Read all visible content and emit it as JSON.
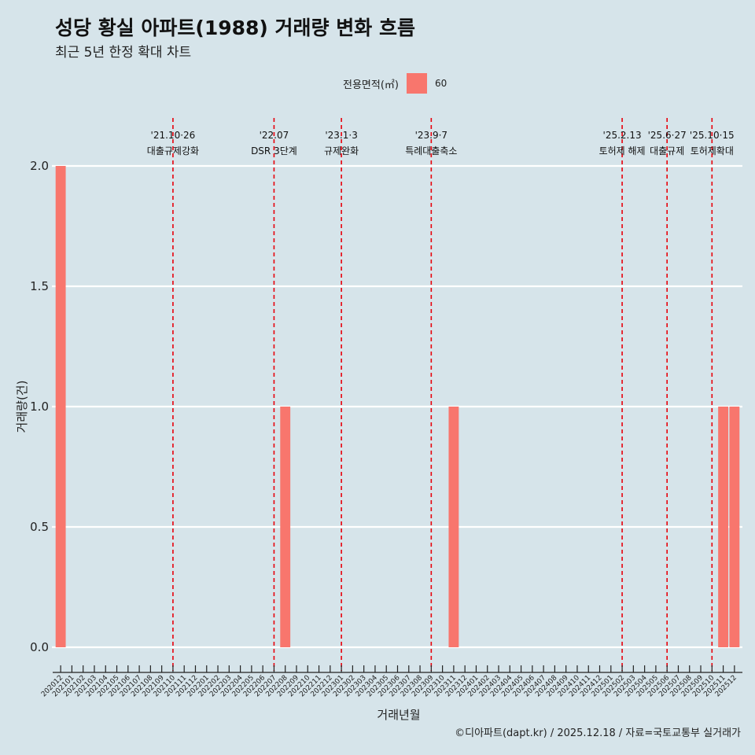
{
  "header": {
    "title": "성당 황실 아파트(1988) 거래량 변화 흐름",
    "subtitle": "최근 5년 한정 확대 차트"
  },
  "legend": {
    "title": "전용면적(㎡)",
    "entry": "60",
    "color": "#f8766d"
  },
  "caption": "©디아파트(dapt.kr) / 2025.12.18 / 자료=국토교통부 실거래가",
  "colors": {
    "background": "#d6e4ea",
    "bar": "#f8766d",
    "event_line": "#e8000b",
    "grid": "#ffffff"
  },
  "chart_data": {
    "type": "bar",
    "title": "성당 황실 아파트(1988) 거래량 변화 흐름",
    "xlabel": "거래년월",
    "ylabel": "거래량(건)",
    "ylim": [
      0,
      2
    ],
    "yticks": [
      "0.0",
      "0.5",
      "1.0",
      "1.5",
      "2.0"
    ],
    "categories": [
      "202012",
      "202101",
      "202102",
      "202103",
      "202104",
      "202105",
      "202106",
      "202107",
      "202108",
      "202109",
      "202110",
      "202111",
      "202112",
      "202201",
      "202202",
      "202203",
      "202204",
      "202205",
      "202206",
      "202207",
      "202208",
      "202209",
      "202210",
      "202211",
      "202212",
      "202301",
      "202302",
      "202303",
      "202304",
      "202305",
      "202306",
      "202307",
      "202308",
      "202309",
      "202310",
      "202311",
      "202312",
      "202401",
      "202402",
      "202403",
      "202404",
      "202405",
      "202406",
      "202407",
      "202408",
      "202409",
      "202410",
      "202411",
      "202412",
      "202501",
      "202502",
      "202503",
      "202504",
      "202505",
      "202506",
      "202507",
      "202508",
      "202509",
      "202510",
      "202511",
      "202512"
    ],
    "series": [
      {
        "name": "60",
        "values": [
          2,
          0,
          0,
          0,
          0,
          0,
          0,
          0,
          0,
          0,
          0,
          0,
          0,
          0,
          0,
          0,
          0,
          0,
          0,
          0,
          1,
          0,
          0,
          0,
          0,
          0,
          0,
          0,
          0,
          0,
          0,
          0,
          0,
          0,
          0,
          1,
          0,
          0,
          0,
          0,
          0,
          0,
          0,
          0,
          0,
          0,
          0,
          0,
          0,
          0,
          0,
          0,
          0,
          0,
          0,
          0,
          0,
          0,
          0,
          1,
          1
        ]
      }
    ],
    "events": [
      {
        "date": "'21.10·26",
        "label": "대출규제강화",
        "x": 10.5
      },
      {
        "date": "'22.07",
        "label": "DSR 3단계",
        "x": 19.5
      },
      {
        "date": "'23.1·3",
        "label": "규제완화",
        "x": 25.5
      },
      {
        "date": "'23.9·7",
        "label": "특례대출축소",
        "x": 33.5
      },
      {
        "date": "'25.2.13",
        "label": "토허제 해제",
        "x": 50.5
      },
      {
        "date": "'25.6·27",
        "label": "대출규제",
        "x": 54.5
      },
      {
        "date": "'25.10·15",
        "label": "토허제확대",
        "x": 58.5
      }
    ]
  }
}
